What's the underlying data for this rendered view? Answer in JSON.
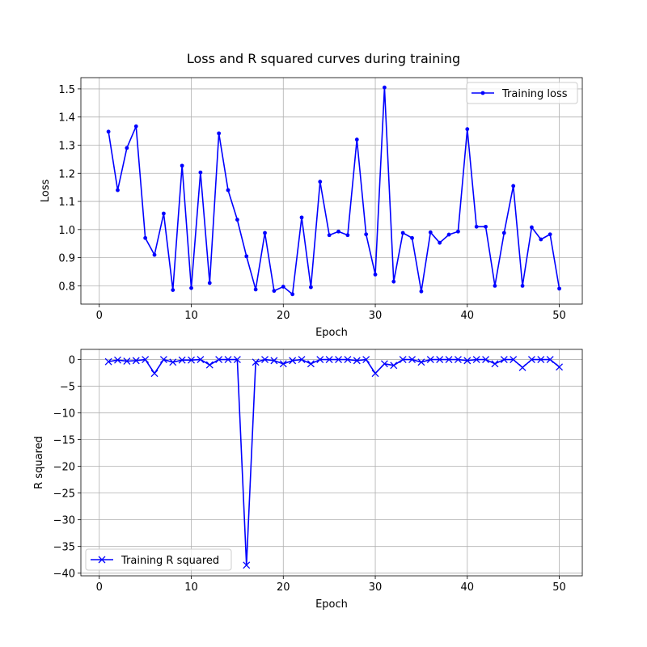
{
  "figure": {
    "title": "Loss and R squared curves during training"
  },
  "chart_data": [
    {
      "type": "line",
      "title": "",
      "xlabel": "Epoch",
      "ylabel": "Loss",
      "xlim": [
        -2,
        52.5
      ],
      "ylim": [
        0.735,
        1.54
      ],
      "xticks": [
        0,
        10,
        20,
        30,
        40,
        50
      ],
      "yticks": [
        0.8,
        0.9,
        1.0,
        1.1,
        1.2,
        1.3,
        1.4,
        1.5
      ],
      "ytick_labels": [
        "0.8",
        "0.9",
        "1.0",
        "1.1",
        "1.2",
        "1.3",
        "1.4",
        "1.5"
      ],
      "grid": true,
      "legend_position": "top-right",
      "marker": "dot",
      "color": "#0000ff",
      "series": [
        {
          "name": "Training loss",
          "x": [
            1,
            2,
            3,
            4,
            5,
            6,
            7,
            8,
            9,
            10,
            11,
            12,
            13,
            14,
            15,
            16,
            17,
            18,
            19,
            20,
            21,
            22,
            23,
            24,
            25,
            26,
            27,
            28,
            29,
            30,
            31,
            32,
            33,
            34,
            35,
            36,
            37,
            38,
            39,
            40,
            41,
            42,
            43,
            44,
            45,
            46,
            47,
            48,
            49,
            50
          ],
          "y": [
            1.348,
            1.14,
            1.29,
            1.367,
            0.97,
            0.91,
            1.057,
            0.785,
            1.227,
            0.792,
            1.203,
            0.81,
            1.342,
            1.14,
            1.035,
            0.905,
            0.787,
            0.988,
            0.782,
            0.797,
            0.77,
            1.043,
            0.795,
            1.17,
            0.98,
            0.993,
            0.98,
            1.32,
            0.983,
            0.84,
            1.505,
            0.815,
            0.988,
            0.97,
            0.78,
            0.99,
            0.953,
            0.982,
            0.993,
            1.357,
            1.01,
            1.01,
            0.8,
            0.988,
            1.155,
            0.8,
            1.008,
            0.965,
            0.983,
            0.79
          ]
        }
      ]
    },
    {
      "type": "line",
      "title": "",
      "xlabel": "Epoch",
      "ylabel": "R squared",
      "xlim": [
        -2,
        52.5
      ],
      "ylim": [
        -40.5,
        1.9
      ],
      "xticks": [
        0,
        10,
        20,
        30,
        40,
        50
      ],
      "yticks": [
        0,
        -5,
        -10,
        -15,
        -20,
        -25,
        -30,
        -35,
        -40
      ],
      "ytick_labels": [
        "0",
        "−5",
        "−10",
        "−15",
        "−20",
        "−25",
        "−30",
        "−35",
        "−40"
      ],
      "grid": true,
      "legend_position": "bottom-left",
      "marker": "x",
      "color": "#0000ff",
      "series": [
        {
          "name": "Training R squared",
          "x": [
            1,
            2,
            3,
            4,
            5,
            6,
            7,
            8,
            9,
            10,
            11,
            12,
            13,
            14,
            15,
            16,
            17,
            18,
            19,
            20,
            21,
            22,
            23,
            24,
            25,
            26,
            27,
            28,
            29,
            30,
            31,
            32,
            33,
            34,
            35,
            36,
            37,
            38,
            39,
            40,
            41,
            42,
            43,
            44,
            45,
            46,
            47,
            48,
            49,
            50
          ],
          "y": [
            -0.4,
            -0.1,
            -0.3,
            -0.2,
            0.0,
            -2.6,
            0.0,
            -0.5,
            -0.1,
            -0.1,
            0.0,
            -1.0,
            0.0,
            0.0,
            0.0,
            -38.5,
            -0.5,
            0.0,
            -0.2,
            -0.8,
            -0.2,
            0.0,
            -0.8,
            0.0,
            0.0,
            0.0,
            0.0,
            -0.2,
            0.0,
            -2.6,
            -0.8,
            -1.1,
            0.0,
            0.0,
            -0.5,
            0.0,
            0.0,
            0.0,
            0.0,
            -0.2,
            0.0,
            0.0,
            -0.8,
            0.0,
            0.0,
            -1.5,
            0.0,
            0.0,
            0.0,
            -1.4
          ]
        }
      ]
    }
  ]
}
